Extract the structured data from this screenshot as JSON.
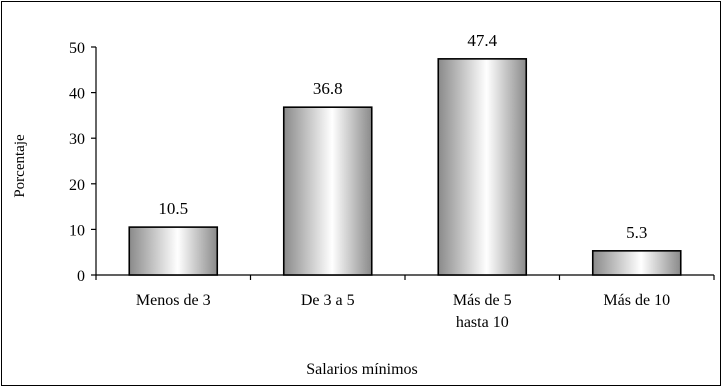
{
  "chart_data": {
    "type": "bar",
    "categories": [
      [
        "Menos de 3"
      ],
      [
        "De 3 a 5"
      ],
      [
        "Más de 5",
        "hasta 10"
      ],
      [
        "Más de 10"
      ]
    ],
    "values": [
      10.5,
      36.8,
      47.4,
      5.3
    ],
    "data_labels": [
      "10.5",
      "36.8",
      "47.4",
      "5.3"
    ],
    "title": "",
    "xlabel": "Salarios mínimos",
    "ylabel": "Porcentaje",
    "ylim": [
      0,
      50
    ],
    "yticks": [
      0,
      10,
      20,
      30,
      40,
      50
    ],
    "grid": false,
    "legend": "none",
    "bar_fill": [
      "#8a8a8a",
      "#ffffff",
      "#8a8a8a"
    ]
  }
}
